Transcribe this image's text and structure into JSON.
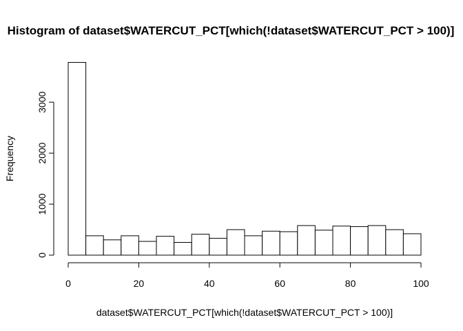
{
  "chart_data": {
    "type": "bar",
    "title": "Histogram of dataset$WATERCUT_PCT[which(!dataset$WATERCUT_PCT > 100)]",
    "xlabel": "dataset$WATERCUT_PCT[which(!dataset$WATERCUT_PCT > 100)]",
    "ylabel": "Frequency",
    "xlim": [
      0,
      100
    ],
    "ylim": [
      0,
      3800
    ],
    "bin_width": 5,
    "bin_starts": [
      0,
      5,
      10,
      15,
      20,
      25,
      30,
      35,
      40,
      45,
      50,
      55,
      60,
      65,
      70,
      75,
      80,
      85,
      90,
      95
    ],
    "values": [
      3780,
      380,
      300,
      380,
      270,
      370,
      250,
      410,
      330,
      500,
      380,
      470,
      460,
      580,
      490,
      570,
      560,
      580,
      500,
      420
    ],
    "x_ticks": [
      0,
      20,
      40,
      60,
      80,
      100
    ],
    "x_tick_labels": [
      "0",
      "20",
      "40",
      "60",
      "80",
      "100"
    ],
    "y_ticks": [
      0,
      1000,
      2000,
      3000
    ],
    "y_tick_labels": [
      "0",
      "1000",
      "2000",
      "3000"
    ],
    "grid": false,
    "legend": "none",
    "bar_fill": "#ffffff",
    "bar_stroke": "#000000"
  }
}
